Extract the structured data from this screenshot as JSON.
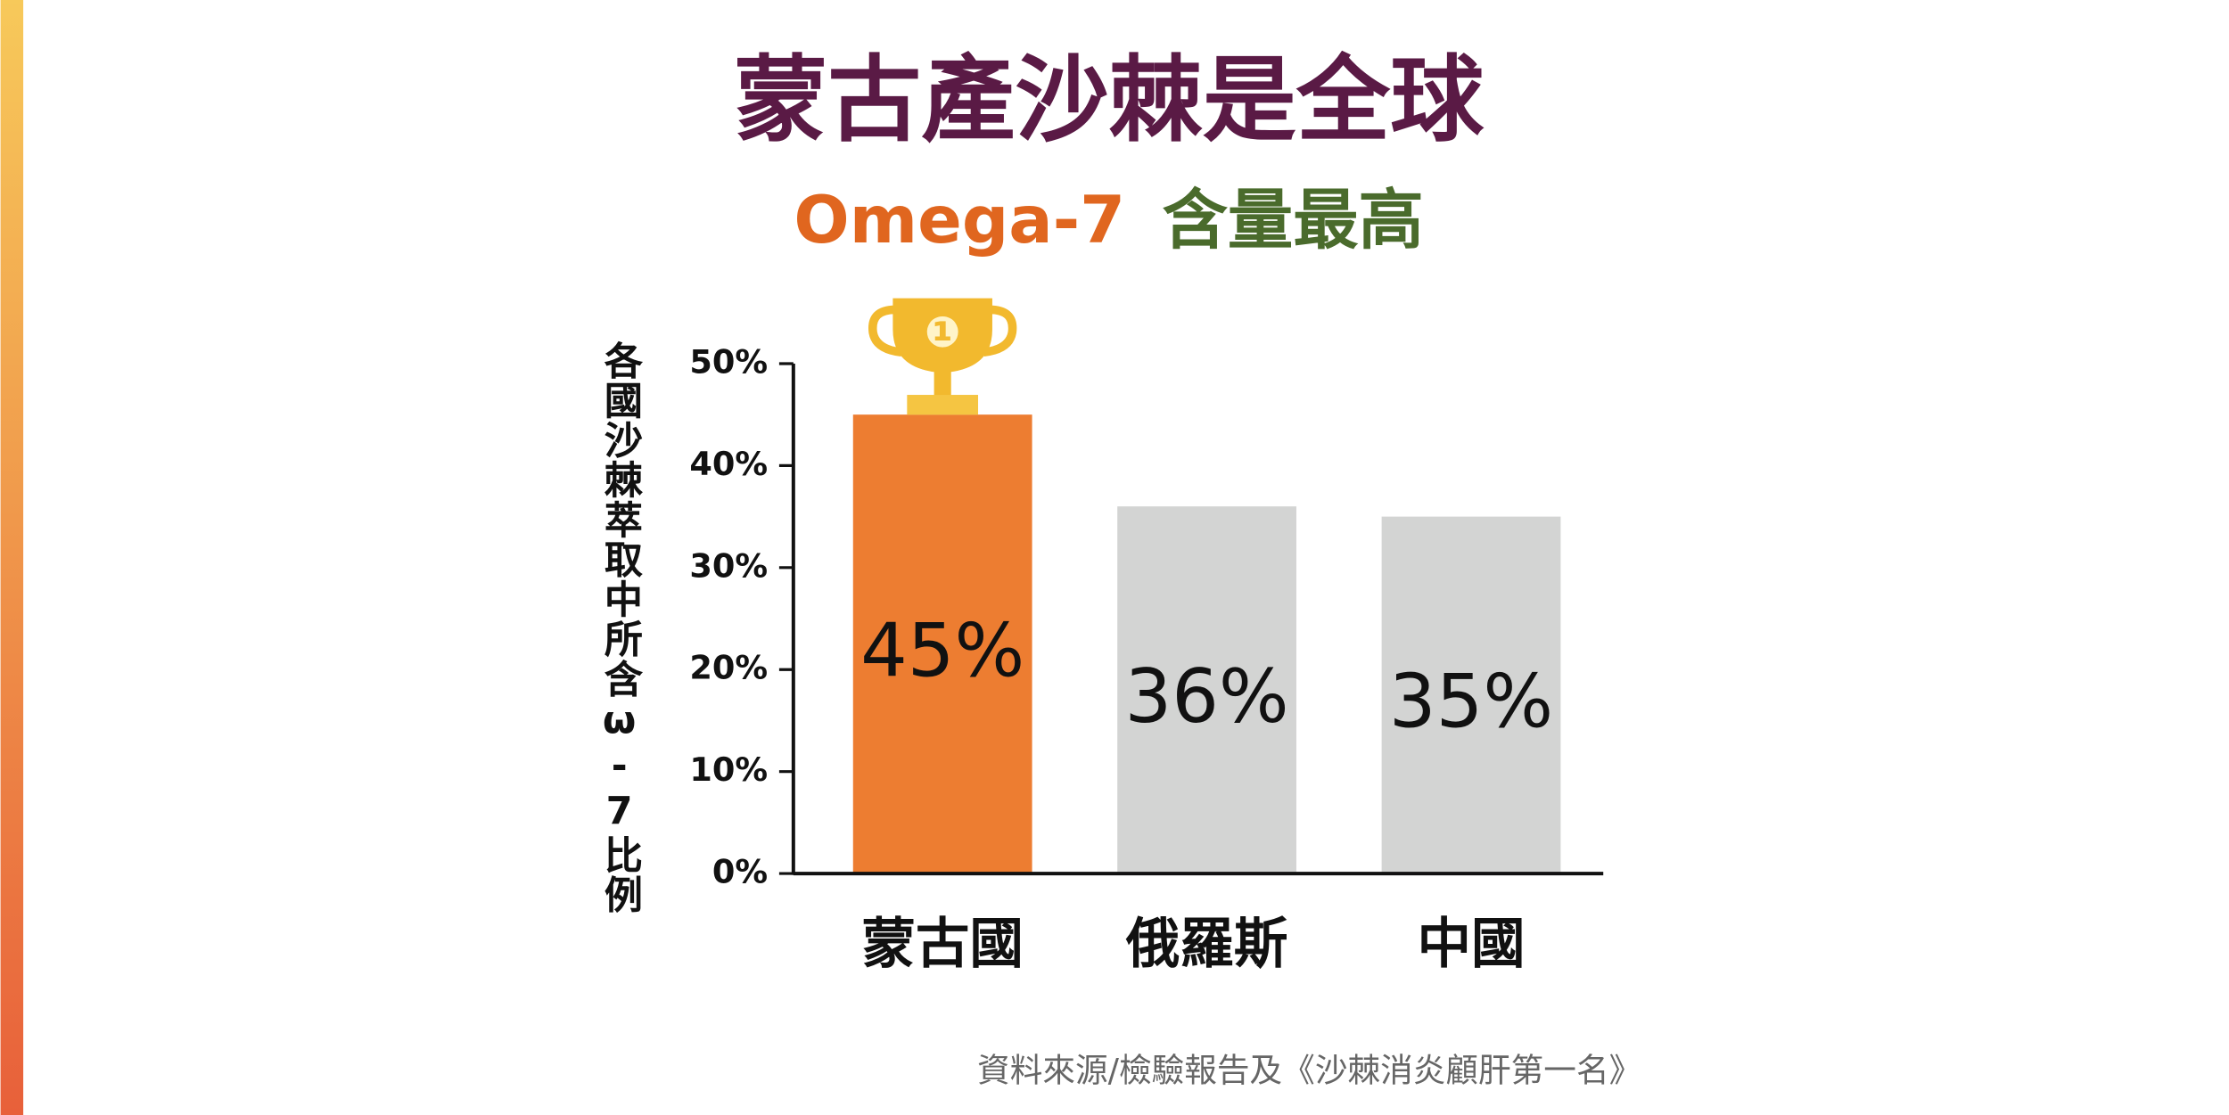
{
  "chart_data": {
    "type": "bar",
    "title": "蒙古產沙棘是全球",
    "subtitle": {
      "highlight": "Omega-7",
      "text": "含量最高"
    },
    "ylabel": "各國沙棘萃取中所含ω-7比例",
    "categories": [
      "蒙古國",
      "俄羅斯",
      "中國"
    ],
    "values": [
      45,
      36,
      35
    ],
    "value_labels": [
      "45%",
      "36%",
      "35%"
    ],
    "colors": [
      "#ed7d31",
      "#d3d4d3",
      "#d3d4d3"
    ],
    "ylim": [
      0,
      50
    ],
    "yticks": [
      {
        "value": 0,
        "label": "0%"
      },
      {
        "value": 10,
        "label": "10%"
      },
      {
        "value": 20,
        "label": "20%"
      },
      {
        "value": 30,
        "label": "30%"
      },
      {
        "value": 40,
        "label": "40%"
      },
      {
        "value": 50,
        "label": "50%"
      }
    ],
    "source": "資料來源/檢驗報告及《沙棘消炎顧肝第一名》"
  }
}
